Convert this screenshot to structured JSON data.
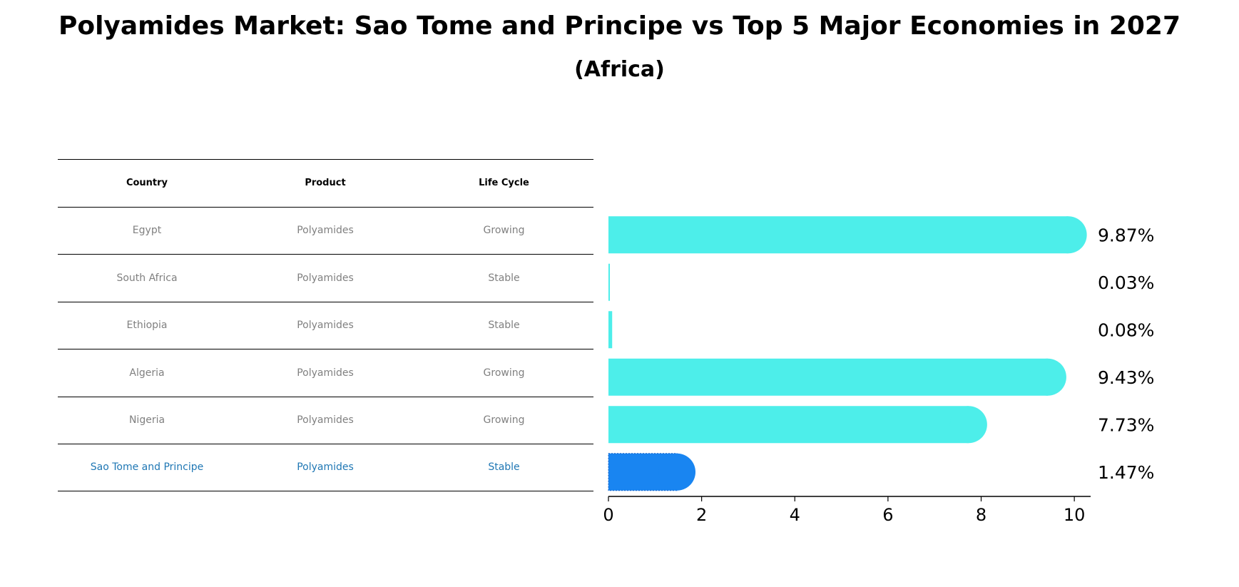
{
  "title": "Polyamides Market: Sao Tome and Principe vs Top 5 Major Economies in 2027",
  "subtitle": "(Africa)",
  "table": {
    "headers": [
      "Country",
      "Product",
      "Life Cycle"
    ],
    "rows": [
      [
        "Egypt",
        "Polyamides",
        "Growing"
      ],
      [
        "South Africa",
        "Polyamides",
        "Stable"
      ],
      [
        "Ethiopia",
        "Polyamides",
        "Stable"
      ],
      [
        "Algeria",
        "Polyamides",
        "Growing"
      ],
      [
        "Nigeria",
        "Polyamides",
        "Growing"
      ],
      [
        "Sao Tome and Principe",
        "Polyamides",
        "Stable"
      ]
    ]
  },
  "colors": {
    "bar": "#4deeea",
    "highlight": "#1985f1",
    "highlight_text": "#1f77b4",
    "muted_text": "#808080"
  },
  "chart_data": {
    "type": "bar",
    "orientation": "horizontal",
    "categories": [
      "Egypt",
      "South Africa",
      "Ethiopia",
      "Algeria",
      "Nigeria",
      "Sao Tome and Principe"
    ],
    "values": [
      9.87,
      0.03,
      0.08,
      9.43,
      7.73,
      1.47
    ],
    "value_labels": [
      "9.87%",
      "0.03%",
      "0.08%",
      "9.43%",
      "7.73%",
      "1.47%"
    ],
    "highlight": "Sao Tome and Principe",
    "xlim": [
      0,
      10.35
    ],
    "xticks": [
      0,
      2,
      4,
      6,
      8,
      10
    ],
    "grid": false
  }
}
